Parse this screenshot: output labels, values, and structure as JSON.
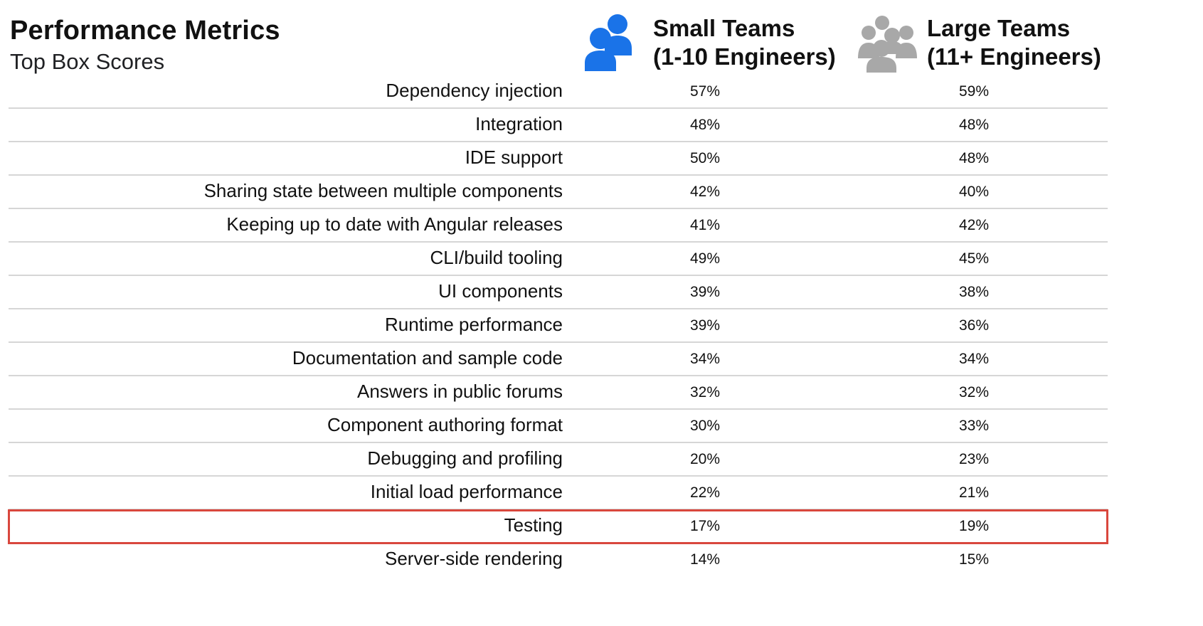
{
  "header": {
    "title": "Performance Metrics",
    "subtitle": "Top Box Scores"
  },
  "columns": {
    "small": {
      "line1": "Small Teams",
      "line2": "(1-10 Engineers)",
      "icon": "small-team-icon",
      "icon_color": "#1a73e8"
    },
    "large": {
      "line1": "Large Teams",
      "line2": "(11+ Engineers)",
      "icon": "large-team-icon",
      "icon_color": "#a8a8a8"
    }
  },
  "highlight": {
    "row": "Testing",
    "color": "#d9473d"
  },
  "chart_data": {
    "type": "table",
    "title": "Performance Metrics",
    "subtitle": "Top Box Scores",
    "columns": [
      "Small Teams (1-10 Engineers)",
      "Large Teams (11+ Engineers)"
    ],
    "rows": [
      {
        "label": "Dependency injection",
        "small": "57%",
        "large": "59%"
      },
      {
        "label": "Integration",
        "small": "48%",
        "large": "48%"
      },
      {
        "label": "IDE support",
        "small": "50%",
        "large": "48%"
      },
      {
        "label": "Sharing state between multiple components",
        "small": "42%",
        "large": "40%"
      },
      {
        "label": "Keeping up to date with Angular releases",
        "small": "41%",
        "large": "42%"
      },
      {
        "label": "CLI/build tooling",
        "small": "49%",
        "large": "45%"
      },
      {
        "label": "UI components",
        "small": "39%",
        "large": "38%"
      },
      {
        "label": "Runtime performance",
        "small": "39%",
        "large": "36%"
      },
      {
        "label": "Documentation and sample code",
        "small": "34%",
        "large": "34%"
      },
      {
        "label": "Answers in public forums",
        "small": "32%",
        "large": "32%"
      },
      {
        "label": "Component authoring format",
        "small": "30%",
        "large": "33%"
      },
      {
        "label": "Debugging and profiling",
        "small": "20%",
        "large": "23%"
      },
      {
        "label": "Initial load performance",
        "small": "22%",
        "large": "21%"
      },
      {
        "label": "Testing",
        "small": "17%",
        "large": "19%"
      },
      {
        "label": "Server-side rendering",
        "small": "14%",
        "large": "15%"
      }
    ]
  }
}
